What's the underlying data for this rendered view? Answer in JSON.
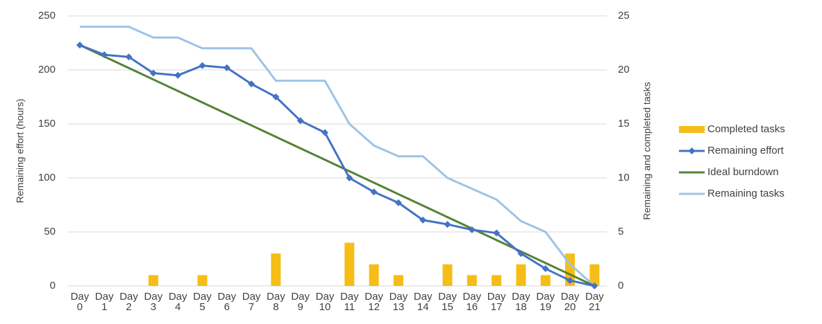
{
  "chart_data": {
    "type": "combo",
    "categories": [
      "Day 0",
      "Day 1",
      "Day 2",
      "Day 3",
      "Day 4",
      "Day 5",
      "Day 6",
      "Day 7",
      "Day 8",
      "Day 9",
      "Day 10",
      "Day 11",
      "Day 12",
      "Day 13",
      "Day 14",
      "Day 15",
      "Day 16",
      "Day 17",
      "Day 18",
      "Day 19",
      "Day 20",
      "Day 21"
    ],
    "ylabel": "Remaining effort (hours)",
    "y2label": "Remaining and completed tasks",
    "ylim": [
      0,
      250
    ],
    "yticks": [
      0,
      50,
      100,
      150,
      200,
      250
    ],
    "y2lim": [
      0,
      25
    ],
    "y2ticks": [
      0,
      5,
      10,
      15,
      20,
      25
    ],
    "grid": true,
    "legend": "right",
    "series": [
      {
        "name": "Completed tasks",
        "type": "bar",
        "axis": "y2",
        "color": "#f6bd16",
        "values": [
          0,
          0,
          0,
          1,
          0,
          1,
          0,
          0,
          3,
          0,
          0,
          4,
          2,
          1,
          0,
          2,
          1,
          1,
          2,
          1,
          3,
          2
        ]
      },
      {
        "name": "Remaining effort",
        "type": "line",
        "marker": "diamond",
        "color": "#4472c4",
        "values": [
          223,
          214,
          212,
          197,
          195,
          204,
          202,
          187,
          175,
          153,
          142,
          100,
          87,
          77,
          61,
          57,
          52,
          49,
          30,
          16,
          5,
          0
        ]
      },
      {
        "name": "Ideal burndown",
        "type": "line",
        "color": "#548235",
        "values": [
          223,
          212.38,
          201.76,
          191.14,
          180.52,
          169.9,
          159.29,
          148.67,
          138.05,
          127.43,
          116.81,
          106.19,
          95.57,
          84.95,
          74.33,
          63.71,
          53.1,
          42.48,
          31.86,
          21.24,
          10.62,
          0
        ]
      },
      {
        "name": "Remaining tasks",
        "type": "line",
        "axis": "y2",
        "color": "#9dc3e6",
        "values": [
          24,
          24,
          24,
          23,
          23,
          22,
          22,
          22,
          19,
          19,
          19,
          15,
          13,
          12,
          12,
          10,
          9,
          8,
          6,
          5,
          2,
          0
        ]
      }
    ]
  }
}
